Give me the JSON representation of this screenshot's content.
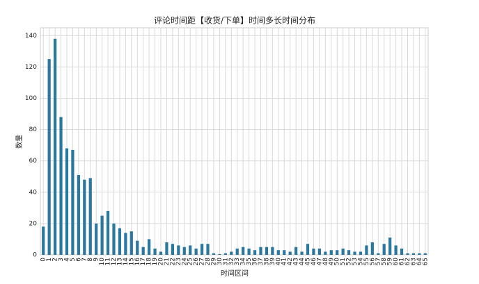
{
  "chart_data": {
    "type": "bar",
    "title": "评论时间距【收货/下单】时间多长时间分布",
    "x_label": "时间区间",
    "y_label": "数量",
    "categories": [
      "0",
      "1",
      "2",
      "3",
      "4",
      "5",
      "6",
      "7",
      "8",
      "9",
      "10",
      "11",
      "12",
      "13",
      "14",
      "15",
      "16",
      "17",
      "18",
      "19",
      "20",
      "21",
      "22",
      "23",
      "24",
      "25",
      "26",
      "27",
      "28",
      "29",
      "30",
      "31",
      "32",
      "33",
      "34",
      "35",
      "36",
      "37",
      "38",
      "39",
      "40",
      "41",
      "42",
      "43",
      "44",
      "45",
      "46",
      "47",
      "48",
      "49",
      "50",
      "51",
      "52",
      "53",
      "54",
      "55",
      "56",
      "57",
      "58",
      "59",
      "60",
      "61",
      "62",
      "63",
      "64",
      "65"
    ],
    "values": [
      18,
      125,
      138,
      88,
      68,
      67,
      51,
      48,
      49,
      20,
      25,
      28,
      20,
      17,
      14,
      15,
      9,
      5,
      10,
      4,
      2,
      8,
      7,
      6,
      5,
      6,
      4,
      7,
      7,
      1,
      0.5,
      1,
      2,
      4,
      5,
      4,
      3,
      5,
      5,
      5,
      3,
      3,
      2,
      5,
      2,
      7,
      4,
      4,
      2,
      3,
      3,
      4,
      3,
      2,
      2,
      6,
      8,
      1,
      7,
      11,
      6,
      4,
      1,
      1,
      1,
      1
    ],
    "color": "#2a77a0",
    "ylim": [
      0,
      145
    ],
    "yticks": [
      0,
      20,
      40,
      60,
      80,
      100,
      120,
      140
    ],
    "grid": true
  }
}
